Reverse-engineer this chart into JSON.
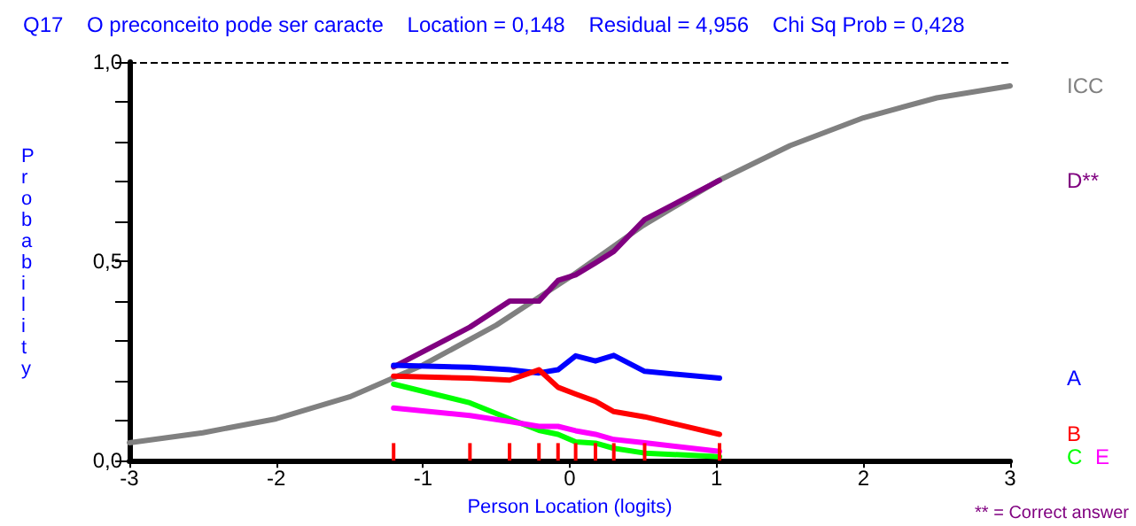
{
  "chart_data": {
    "type": "line",
    "title": "Q17    O preconceito pode ser caracte    Location = 0,148    Residual = 4,956    Chi Sq Prob = 0,428",
    "xlabel": "Person Location (logits)",
    "ylabel": "Probability",
    "xlim": [
      -3,
      3
    ],
    "xticks": [
      -3,
      -2,
      -1,
      0,
      1,
      2,
      3
    ],
    "ylim": [
      0,
      1
    ],
    "yticks": [
      {
        "value": 0,
        "label": "0,0"
      },
      {
        "value": 0.1,
        "label": null
      },
      {
        "value": 0.2,
        "label": null
      },
      {
        "value": 0.3,
        "label": null
      },
      {
        "value": 0.4,
        "label": null
      },
      {
        "value": 0.5,
        "label": "0,5"
      },
      {
        "value": 0.6,
        "label": null
      },
      {
        "value": 0.7,
        "label": null
      },
      {
        "value": 0.8,
        "label": null
      },
      {
        "value": 0.9,
        "label": null
      },
      {
        "value": 1,
        "label": "1,0"
      }
    ],
    "grid": false,
    "legend": false,
    "marker": "none",
    "line_style": "solid",
    "ref_lines": [
      {
        "axis": "y",
        "value": 1,
        "color": "#000000",
        "line_style": "dashed"
      }
    ],
    "annotations": [
      "** = Correct answer"
    ],
    "series": [
      {
        "name": "ICC",
        "color": "#808080",
        "x": [
          -3,
          -2.5,
          -2,
          -1.5,
          -1,
          -0.5,
          0,
          0.5,
          1,
          1.5,
          2,
          2.5,
          3
        ],
        "values": [
          0.045,
          0.07,
          0.105,
          0.16,
          0.24,
          0.34,
          0.46,
          0.59,
          0.7,
          0.79,
          0.86,
          0.91,
          0.94
        ]
      },
      {
        "name": "D**",
        "color": "#800080",
        "x": [
          -1.2,
          -0.68,
          -0.41,
          -0.21,
          -0.08,
          0.04,
          0.175,
          0.3,
          0.51,
          1.02
        ],
        "values": [
          0.235,
          0.335,
          0.4,
          0.4,
          0.452,
          0.466,
          0.496,
          0.525,
          0.605,
          0.703
        ]
      },
      {
        "name": "A",
        "color": "#0000ff",
        "x": [
          -1.2,
          -0.68,
          -0.41,
          -0.21,
          -0.08,
          0.04,
          0.175,
          0.3,
          0.51,
          1.02
        ],
        "values": [
          0.239,
          0.234,
          0.228,
          0.22,
          0.228,
          0.263,
          0.25,
          0.264,
          0.224,
          0.207
        ]
      },
      {
        "name": "B",
        "color": "#ff0000",
        "x": [
          -1.2,
          -0.68,
          -0.41,
          -0.21,
          -0.08,
          0.04,
          0.175,
          0.3,
          0.51,
          1.02
        ],
        "values": [
          0.212,
          0.207,
          0.202,
          0.228,
          0.184,
          0.167,
          0.149,
          0.123,
          0.11,
          0.066
        ]
      },
      {
        "name": "C",
        "color": "#00ff00",
        "x": [
          -1.2,
          -0.68,
          -0.41,
          -0.21,
          -0.08,
          0.04,
          0.175,
          0.3,
          0.51,
          1.02
        ],
        "values": [
          0.192,
          0.145,
          0.105,
          0.076,
          0.066,
          0.047,
          0.044,
          0.031,
          0.019,
          0.01
        ]
      },
      {
        "name": "E",
        "color": "#ff00ff",
        "x": [
          -1.2,
          -0.68,
          -0.41,
          -0.21,
          -0.08,
          0.04,
          0.175,
          0.3,
          0.51,
          1.02
        ],
        "values": [
          0.132,
          0.113,
          0.098,
          0.086,
          0.086,
          0.075,
          0.066,
          0.053,
          0.045,
          0.023
        ]
      },
      {
        "type": "bar",
        "color": "#ff0000",
        "x": [
          -1.2,
          -0.68,
          -0.41,
          -0.21,
          -0.08,
          0.04,
          0.175,
          0.3,
          0.51,
          1.02
        ],
        "values": [
          0.044,
          0.044,
          0.044,
          0.044,
          0.044,
          0.044,
          0.044,
          0.044,
          0.044,
          0.044
        ]
      }
    ]
  }
}
